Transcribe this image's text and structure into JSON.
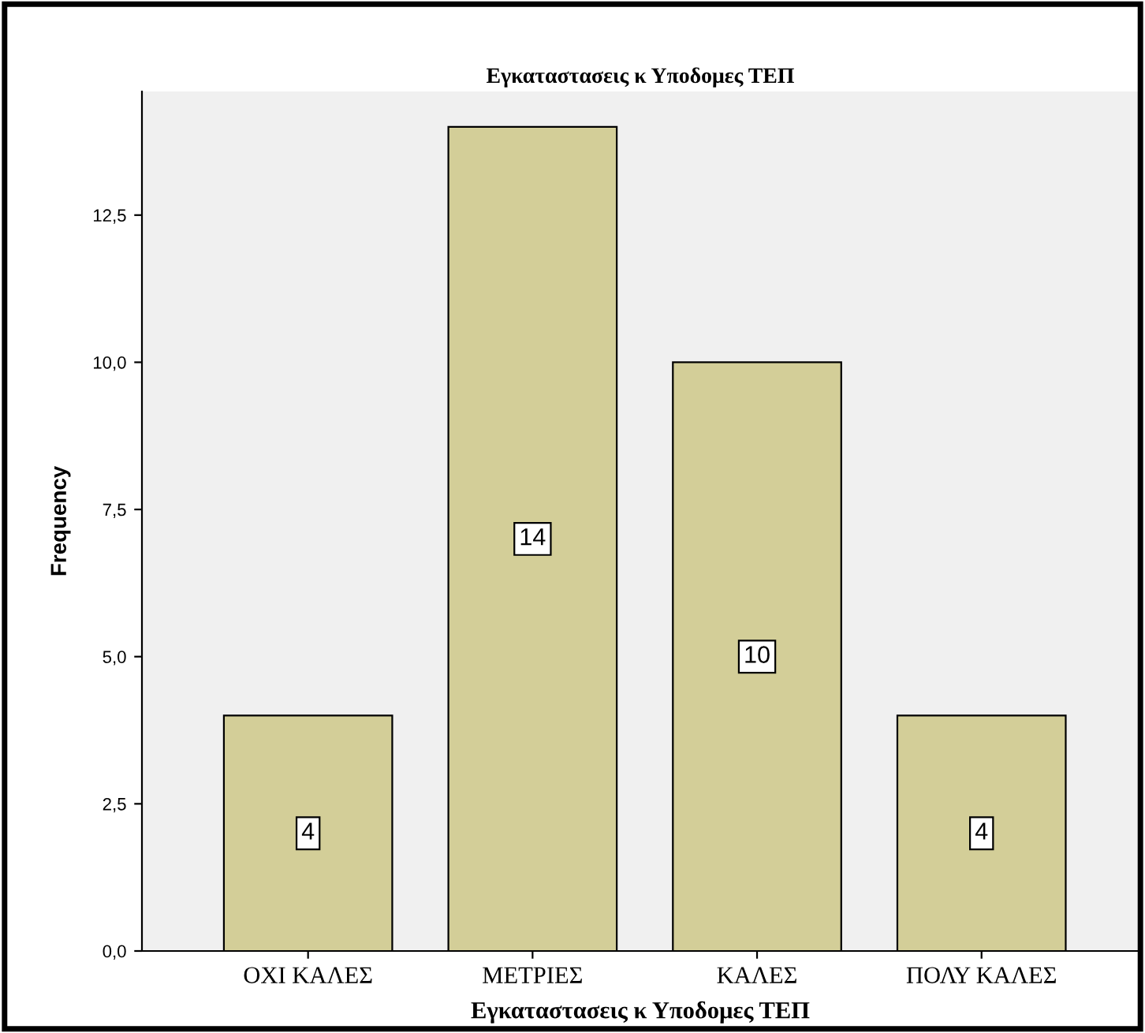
{
  "chart_data": {
    "type": "bar",
    "title": "Εγκαταστασεις κ Υποδομες ΤΕΠ",
    "xlabel": "Εγκαταστασεις κ Υποδομες ΤΕΠ",
    "ylabel": "Frequency",
    "categories": [
      "ΟΧΙ ΚΑΛΕΣ",
      "ΜΕΤΡΙΕΣ",
      "ΚΑΛΕΣ",
      "ΠΟΛΥ ΚΑΛΕΣ"
    ],
    "values": [
      4,
      14,
      10,
      4
    ],
    "color": "#d3ce98",
    "ylim": [
      0,
      14.6
    ],
    "yticks": [
      {
        "value": 0,
        "label": "0,0"
      },
      {
        "value": 2.5,
        "label": "2,5"
      },
      {
        "value": 5,
        "label": "5,0"
      },
      {
        "value": 7.5,
        "label": "7,5"
      },
      {
        "value": 10,
        "label": "10,0"
      },
      {
        "value": 12.5,
        "label": "12,5"
      }
    ],
    "data_labels": true,
    "grid": false,
    "legend": false
  }
}
